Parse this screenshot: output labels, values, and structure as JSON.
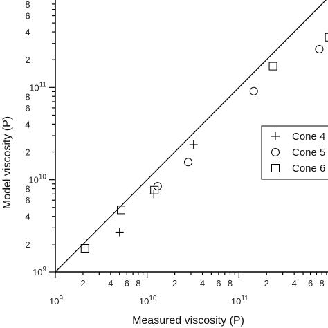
{
  "chart_data": {
    "type": "scatter",
    "xscale": "log",
    "yscale": "log",
    "xlabel": "Measured viscosity (P)",
    "ylabel": "Model viscosity (P)",
    "xlim": [
      1000000000.0,
      1000000000000.0
    ],
    "ylim": [
      1000000000.0,
      1000000000000.0
    ],
    "grid": false,
    "legend_position": "right",
    "reference_line": "y = x",
    "x_decade_labels": [
      {
        "base": "10",
        "exp": "9",
        "value": 1000000000.0
      },
      {
        "base": "10",
        "exp": "10",
        "value": 10000000000.0
      },
      {
        "base": "10",
        "exp": "11",
        "value": 100000000000.0
      }
    ],
    "y_decade_labels": [
      {
        "base": "10",
        "exp": "9",
        "value": 1000000000.0
      },
      {
        "base": "10",
        "exp": "10",
        "value": 10000000000.0
      },
      {
        "base": "10",
        "exp": "11",
        "value": 100000000000.0
      }
    ],
    "minor_tick_labels": [
      "2",
      "4",
      "6",
      "8"
    ],
    "series": [
      {
        "name": "Cone 4",
        "marker": "plus",
        "points": [
          {
            "x": 5000000000.0,
            "y": 2700000000.0
          },
          {
            "x": 11800000000.0,
            "y": 7000000000.0
          },
          {
            "x": 32000000000.0,
            "y": 24000000000.0
          }
        ]
      },
      {
        "name": "Cone 5",
        "marker": "circle",
        "points": [
          {
            "x": 13000000000.0,
            "y": 8500000000.0
          },
          {
            "x": 28000000000.0,
            "y": 15500000000.0
          },
          {
            "x": 145000000000.0,
            "y": 91000000000.0
          },
          {
            "x": 750000000000.0,
            "y": 260000000000.0
          }
        ]
      },
      {
        "name": "Cone 6",
        "marker": "square",
        "points": [
          {
            "x": 2100000000.0,
            "y": 1800000000.0
          },
          {
            "x": 5200000000.0,
            "y": 4700000000.0
          },
          {
            "x": 12000000000.0,
            "y": 7700000000.0
          },
          {
            "x": 235000000000.0,
            "y": 170000000000.0
          },
          {
            "x": 960000000000.0,
            "y": 350000000000.0
          }
        ]
      }
    ]
  }
}
